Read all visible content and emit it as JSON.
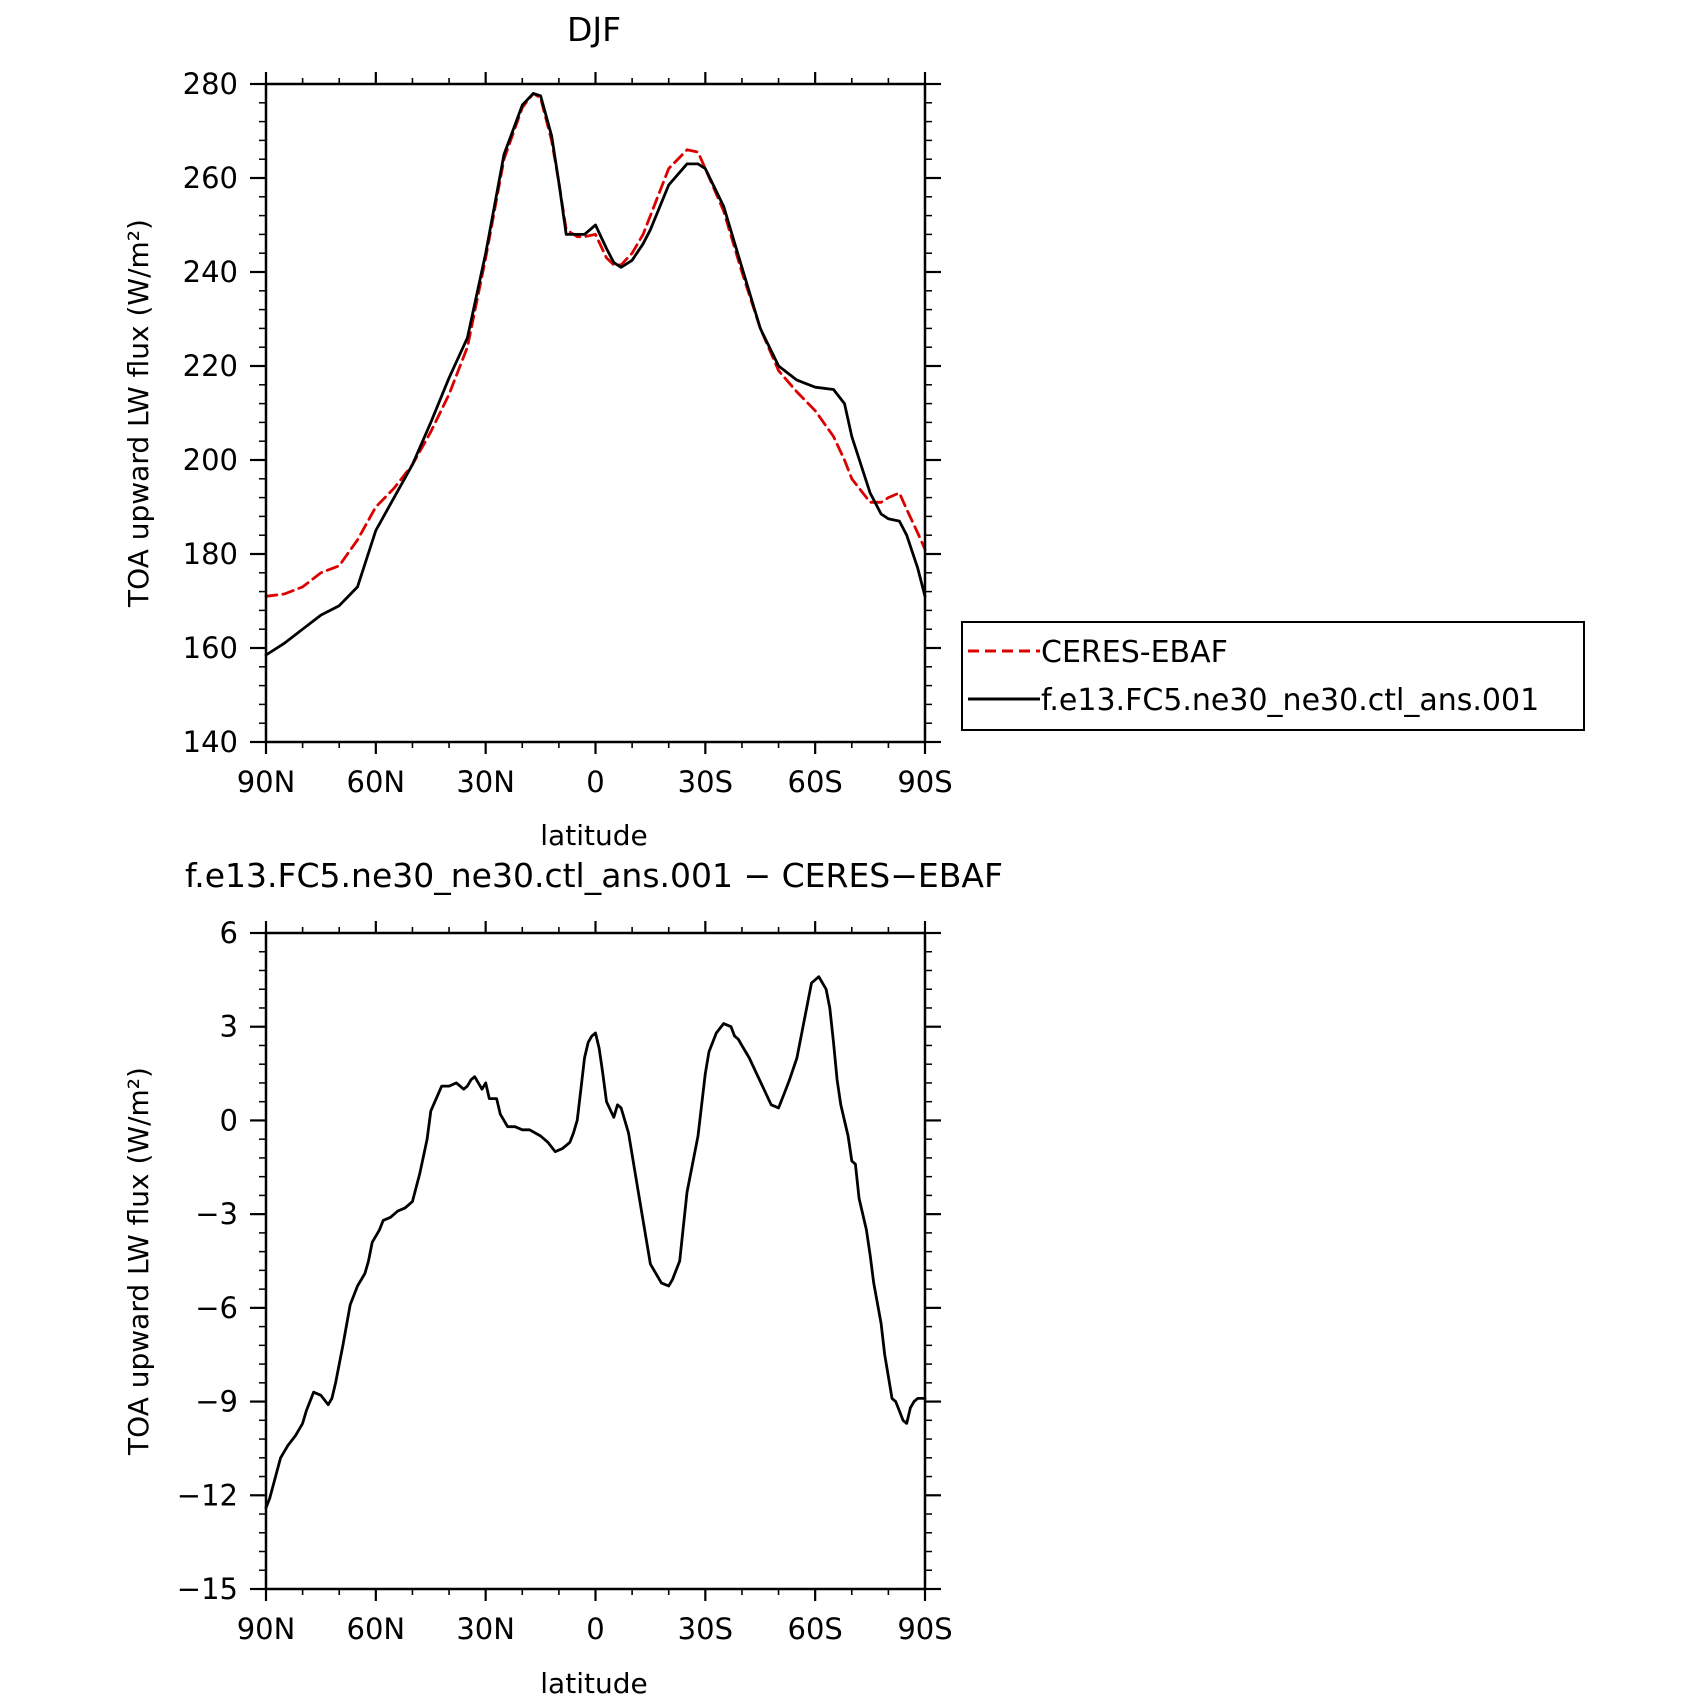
{
  "chart_data": [
    {
      "type": "line",
      "title": "DJF",
      "xlabel": "latitude",
      "ylabel": "TOA upward LW flux (W/m²)",
      "xlim": [
        90,
        -90
      ],
      "ylim": [
        140,
        280
      ],
      "x_ticks": [
        90,
        60,
        30,
        0,
        -30,
        -60,
        -90
      ],
      "x_tick_labels": [
        "90N",
        "60N",
        "30N",
        "0",
        "30S",
        "60S",
        "90S"
      ],
      "y_ticks": [
        140,
        160,
        180,
        200,
        220,
        240,
        260,
        280
      ],
      "y_tick_labels": [
        "140",
        "160",
        "180",
        "200",
        "220",
        "240",
        "260",
        "280"
      ],
      "legend_position": "right",
      "x": [
        90,
        85,
        80,
        75,
        70,
        65,
        60,
        55,
        50,
        45,
        40,
        35,
        30,
        25,
        20,
        17,
        15,
        12,
        10,
        8,
        5,
        3,
        0,
        -3,
        -5,
        -7,
        -10,
        -13,
        -15,
        -20,
        -25,
        -28,
        -30,
        -35,
        -40,
        -45,
        -50,
        -55,
        -60,
        -65,
        -68,
        -70,
        -75,
        -78,
        -80,
        -83,
        -85,
        -88,
        -90
      ],
      "series": [
        {
          "name": "CERES-EBAF",
          "color": "#dd0000",
          "dash": "dashed",
          "values": [
            171,
            171.5,
            173,
            176,
            177.5,
            183,
            190,
            194,
            199,
            206,
            214,
            224,
            243,
            264,
            275,
            278,
            277,
            268,
            259,
            249,
            247.5,
            247.5,
            248,
            243,
            241.5,
            241.5,
            244,
            248,
            252,
            262,
            266,
            265.5,
            262,
            253,
            240,
            228,
            219,
            214.5,
            210.5,
            205,
            200,
            196,
            191,
            191,
            192,
            193,
            189.5,
            184.5,
            181
          ]
        },
        {
          "name": "f.e13.FC5.ne30_ne30.ctl_ans.001",
          "color": "#000000",
          "dash": "solid",
          "values": [
            158.5,
            161,
            164,
            167,
            169,
            173,
            185,
            192,
            199,
            208,
            217.5,
            226,
            244,
            265,
            275.5,
            278,
            277.5,
            269,
            259,
            248,
            248,
            248,
            250,
            245,
            242,
            241,
            242.5,
            246,
            249,
            258.5,
            263,
            263,
            262,
            254,
            241,
            228,
            220,
            217,
            215.5,
            215,
            212,
            205,
            193,
            188.5,
            187.5,
            187,
            184,
            177,
            171
          ]
        }
      ]
    },
    {
      "type": "line",
      "title": "f.e13.FC5.ne30_ne30.ctl_ans.001 − CERES−EBAF",
      "xlabel": "latitude",
      "ylabel": "TOA upward LW flux (W/m²)",
      "xlim": [
        90,
        -90
      ],
      "ylim": [
        -15,
        6
      ],
      "x_ticks": [
        90,
        60,
        30,
        0,
        -30,
        -60,
        -90
      ],
      "x_tick_labels": [
        "90N",
        "60N",
        "30N",
        "0",
        "30S",
        "60S",
        "90S"
      ],
      "y_ticks": [
        -15,
        -12,
        -9,
        -6,
        -3,
        0,
        3,
        6
      ],
      "y_tick_labels": [
        "−15",
        "−12",
        "−9",
        "−6",
        "−3",
        "0",
        "3",
        "6"
      ],
      "x": [
        90,
        89,
        86,
        84,
        82,
        80,
        79,
        77,
        75,
        73,
        72,
        71,
        69,
        67,
        65,
        63,
        62,
        61,
        59,
        58,
        56,
        54,
        52,
        50,
        48,
        46,
        45,
        42,
        40,
        38,
        36,
        35,
        34,
        33,
        31,
        30,
        29,
        27,
        26,
        24,
        22,
        20,
        18,
        15,
        13,
        11,
        9,
        8,
        7,
        6,
        5,
        4,
        3,
        2,
        1,
        0,
        -1,
        -2,
        -3,
        -5,
        -6,
        -7,
        -9,
        -12,
        -15,
        -18,
        -20,
        -21,
        -23,
        -25,
        -28,
        -30,
        -31,
        -33,
        -35,
        -37,
        -38,
        -39,
        -40,
        -42,
        -44,
        -46,
        -48,
        -50,
        -52,
        -53,
        -55,
        -57,
        -59,
        -61,
        -63,
        -64,
        -65,
        -66,
        -67,
        -69,
        -70,
        -71,
        -72,
        -74,
        -75,
        -76,
        -78,
        -79,
        -80,
        -81,
        -82,
        -83,
        -84,
        -85,
        -86,
        -87,
        -88,
        -89,
        -90
      ],
      "series": [
        {
          "name": "",
          "color": "#000000",
          "dash": "solid",
          "values": [
            -12.4,
            -12.1,
            -10.8,
            -10.4,
            -10.1,
            -9.7,
            -9.3,
            -8.7,
            -8.8,
            -9.1,
            -8.9,
            -8.4,
            -7.2,
            -5.9,
            -5.3,
            -4.9,
            -4.5,
            -3.9,
            -3.5,
            -3.2,
            -3.1,
            -2.9,
            -2.8,
            -2.6,
            -1.7,
            -0.6,
            0.3,
            1.1,
            1.1,
            1.2,
            1.0,
            1.1,
            1.3,
            1.4,
            1.0,
            1.2,
            0.7,
            0.7,
            0.2,
            -0.2,
            -0.2,
            -0.3,
            -0.3,
            -0.5,
            -0.7,
            -1.0,
            -0.9,
            -0.8,
            -0.7,
            -0.4,
            0.0,
            1.0,
            2.0,
            2.5,
            2.7,
            2.8,
            2.3,
            1.5,
            0.6,
            0.1,
            0.5,
            0.4,
            -0.4,
            -2.5,
            -4.6,
            -5.2,
            -5.3,
            -5.1,
            -4.5,
            -2.3,
            -0.5,
            1.5,
            2.2,
            2.8,
            3.1,
            3.0,
            2.7,
            2.6,
            2.4,
            2.0,
            1.5,
            1.0,
            0.5,
            0.4,
            1.0,
            1.3,
            2.0,
            3.2,
            4.4,
            4.6,
            4.2,
            3.6,
            2.5,
            1.3,
            0.5,
            -0.5,
            -1.3,
            -1.4,
            -2.5,
            -3.5,
            -4.3,
            -5.2,
            -6.5,
            -7.5,
            -8.2,
            -8.9,
            -9.0,
            -9.3,
            -9.6,
            -9.7,
            -9.2,
            -9.0,
            -8.9,
            -8.9,
            -8.9
          ]
        }
      ]
    }
  ]
}
